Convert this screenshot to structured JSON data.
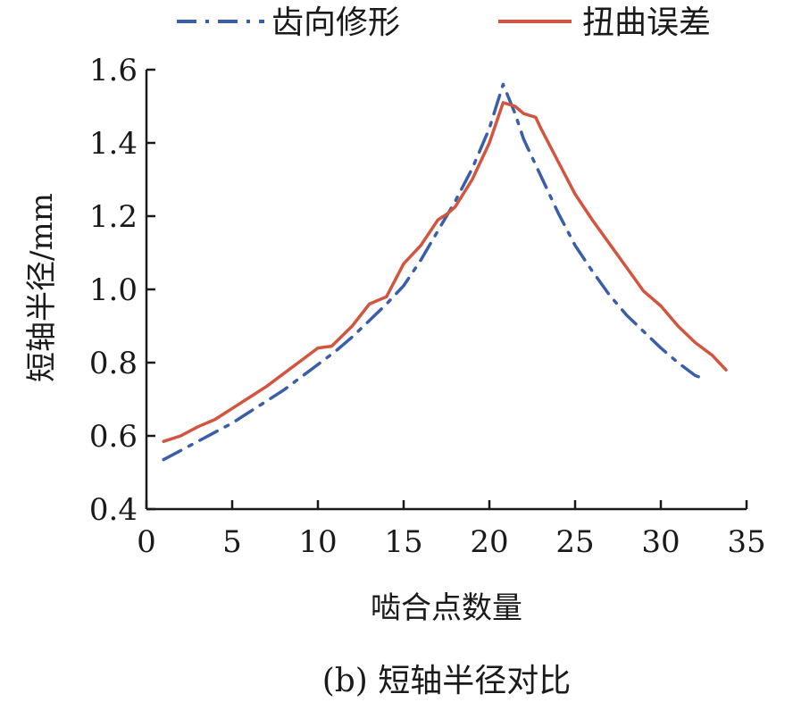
{
  "chart_data": {
    "type": "line",
    "caption": "(b) 短轴半径对比",
    "xlabel": "啮合点数量",
    "ylabel": "短轴半径/mm",
    "xlim": [
      0,
      35
    ],
    "ylim": [
      0.4,
      1.6
    ],
    "xticks": [
      0,
      5,
      10,
      15,
      20,
      25,
      30,
      35
    ],
    "yticks": [
      0.4,
      0.6,
      0.8,
      1.0,
      1.2,
      1.4,
      1.6
    ],
    "xtick_labels": [
      "0",
      "5",
      "10",
      "15",
      "20",
      "25",
      "30",
      "35"
    ],
    "ytick_labels": [
      "0.4",
      "0.6",
      "0.8",
      "1.0",
      "1.2",
      "1.4",
      "1.6"
    ],
    "grid": false,
    "legend_position": "top",
    "series": [
      {
        "name": "齿向修形",
        "color": "#3a5ea8",
        "line_style": "dash-dot",
        "x": [
          1,
          2,
          3,
          4,
          5,
          6,
          7,
          8,
          9,
          10,
          11,
          12,
          13,
          14,
          15,
          16,
          17,
          18,
          19,
          20,
          20.8,
          21.5,
          22,
          23,
          24,
          25,
          26,
          27,
          28,
          29,
          30,
          31,
          32,
          32.6
        ],
        "y": [
          0.535,
          0.56,
          0.585,
          0.61,
          0.635,
          0.665,
          0.695,
          0.725,
          0.76,
          0.795,
          0.83,
          0.87,
          0.915,
          0.96,
          1.01,
          1.08,
          1.16,
          1.24,
          1.33,
          1.44,
          1.56,
          1.48,
          1.41,
          1.31,
          1.21,
          1.12,
          1.05,
          0.985,
          0.93,
          0.885,
          0.84,
          0.8,
          0.765,
          0.755
        ]
      },
      {
        "name": "扭曲误差",
        "color": "#d2553f",
        "line_style": "solid",
        "x": [
          1,
          2,
          3,
          4,
          5,
          6,
          7,
          8,
          9,
          10,
          10.8,
          12,
          13,
          14,
          15,
          16,
          17,
          17.5,
          18,
          19,
          20,
          20.8,
          21.5,
          22,
          22.7,
          23,
          24,
          25,
          26,
          27,
          28,
          29,
          30,
          31,
          32,
          33,
          33.8
        ],
        "y": [
          0.585,
          0.6,
          0.625,
          0.645,
          0.675,
          0.705,
          0.735,
          0.77,
          0.805,
          0.84,
          0.845,
          0.9,
          0.96,
          0.98,
          1.07,
          1.12,
          1.19,
          1.205,
          1.225,
          1.3,
          1.4,
          1.51,
          1.5,
          1.48,
          1.47,
          1.44,
          1.35,
          1.26,
          1.19,
          1.125,
          1.06,
          0.995,
          0.955,
          0.9,
          0.855,
          0.82,
          0.78
        ]
      }
    ]
  }
}
